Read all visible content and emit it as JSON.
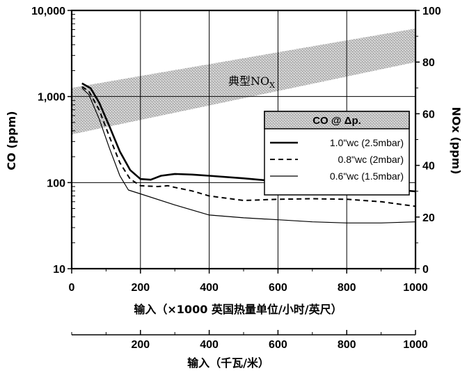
{
  "chart_data": {
    "type": "line",
    "x_axis": {
      "label": "输入（×1000 英国热量单位/小时/英尺）",
      "range": [
        0,
        1000
      ],
      "ticks": [
        "0",
        "200",
        "400",
        "600",
        "800",
        "1000"
      ]
    },
    "x_axis_secondary": {
      "label": "输入（千瓦/米）",
      "ticks": [
        "200",
        "400",
        "600",
        "800",
        "1000"
      ]
    },
    "y_axis_left": {
      "label": "CO (ppm)",
      "scale": "log",
      "range": [
        10,
        10000
      ],
      "ticks": [
        "10,000",
        "1,000",
        "100",
        "10"
      ]
    },
    "y_axis_right": {
      "label": "NOx (ppm)",
      "range": [
        0,
        100
      ],
      "ticks": [
        "100",
        "80",
        "60",
        "40",
        "20",
        "0"
      ]
    },
    "band": {
      "label_main": "典型NO",
      "label_sub": "X",
      "lower": [
        [
          0,
          52
        ],
        [
          1000,
          80
        ]
      ],
      "upper": [
        [
          0,
          70
        ],
        [
          1000,
          93
        ]
      ]
    },
    "legend": {
      "title": "CO @ Δp.",
      "placement": "right"
    },
    "series": [
      {
        "name": "1.0\"wc (2.5mbar)",
        "style": "thick",
        "points": [
          [
            30,
            1420
          ],
          [
            55,
            1250
          ],
          [
            80,
            850
          ],
          [
            110,
            450
          ],
          [
            140,
            230
          ],
          [
            170,
            140
          ],
          [
            200,
            110
          ],
          [
            230,
            108
          ],
          [
            260,
            120
          ],
          [
            300,
            126
          ],
          [
            350,
            124
          ],
          [
            400,
            120
          ],
          [
            500,
            112
          ],
          [
            600,
            103
          ],
          [
            700,
            97
          ],
          [
            800,
            92
          ],
          [
            900,
            86
          ],
          [
            1000,
            79
          ]
        ]
      },
      {
        "name": "0.8\"wc (2mbar)",
        "style": "dashed",
        "points": [
          [
            30,
            1300
          ],
          [
            50,
            1150
          ],
          [
            80,
            700
          ],
          [
            110,
            340
          ],
          [
            140,
            170
          ],
          [
            170,
            110
          ],
          [
            200,
            92
          ],
          [
            250,
            90
          ],
          [
            280,
            92
          ],
          [
            300,
            88
          ],
          [
            350,
            80
          ],
          [
            400,
            70
          ],
          [
            500,
            62
          ],
          [
            600,
            64
          ],
          [
            700,
            65
          ],
          [
            800,
            64
          ],
          [
            900,
            60
          ],
          [
            1000,
            53
          ]
        ]
      },
      {
        "name": "0.6\"wc (1.5mbar)",
        "style": "thin",
        "points": [
          [
            30,
            1250
          ],
          [
            50,
            1050
          ],
          [
            80,
            550
          ],
          [
            110,
            250
          ],
          [
            140,
            120
          ],
          [
            165,
            82
          ],
          [
            200,
            74
          ],
          [
            300,
            55
          ],
          [
            400,
            42
          ],
          [
            500,
            39
          ],
          [
            600,
            37
          ],
          [
            700,
            35
          ],
          [
            800,
            34
          ],
          [
            900,
            34
          ],
          [
            1000,
            35
          ]
        ]
      }
    ]
  }
}
